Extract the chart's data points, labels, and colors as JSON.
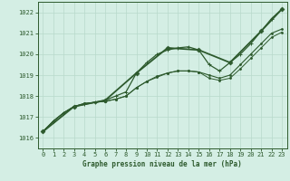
{
  "title": "Graphe pression niveau de la mer (hPa)",
  "bg_color": "#d4eee4",
  "grid_color": "#b8d9cb",
  "line_color": "#2d5a2d",
  "marker_color": "#2d5a2d",
  "xlim": [
    -0.5,
    23.5
  ],
  "ylim": [
    1015.5,
    1022.5
  ],
  "yticks": [
    1016,
    1017,
    1018,
    1019,
    1020,
    1021,
    1022
  ],
  "xticks": [
    0,
    1,
    2,
    3,
    4,
    5,
    6,
    7,
    8,
    9,
    10,
    11,
    12,
    13,
    14,
    15,
    16,
    17,
    18,
    19,
    20,
    21,
    22,
    23
  ],
  "series": [
    {
      "x": [
        0,
        1,
        2,
        3,
        4,
        5,
        6,
        7,
        8,
        9,
        10,
        11,
        12,
        13,
        14,
        15,
        16,
        17,
        18,
        19,
        20,
        21,
        22,
        23
      ],
      "y": [
        1016.3,
        1016.8,
        1017.2,
        1017.5,
        1017.6,
        1017.7,
        1017.8,
        1018.0,
        1018.2,
        1019.1,
        1019.6,
        1020.0,
        1020.2,
        1020.3,
        1020.35,
        1020.2,
        1019.5,
        1019.2,
        1019.6,
        1020.0,
        1020.5,
        1021.1,
        1021.7,
        1022.15
      ],
      "marker": "P",
      "markersize": 2.8,
      "linewidth": 0.9
    },
    {
      "x": [
        0,
        1,
        2,
        3,
        4,
        5,
        6,
        7,
        8,
        9,
        10,
        11,
        12,
        13,
        14,
        15,
        16,
        17,
        18,
        19,
        20,
        21,
        22,
        23
      ],
      "y": [
        1016.3,
        1016.8,
        1017.2,
        1017.5,
        1017.65,
        1017.7,
        1017.75,
        1017.85,
        1018.0,
        1018.4,
        1018.7,
        1018.95,
        1019.1,
        1019.2,
        1019.2,
        1019.15,
        1019.0,
        1018.85,
        1019.0,
        1019.5,
        1020.0,
        1020.5,
        1021.0,
        1021.2
      ],
      "marker": ".",
      "markersize": 2.0,
      "linewidth": 0.8
    },
    {
      "x": [
        0,
        1,
        2,
        3,
        4,
        5,
        6,
        7,
        8,
        9,
        10,
        11,
        12,
        13,
        14,
        15,
        16,
        17,
        18,
        19,
        20,
        21,
        22,
        23
      ],
      "y": [
        1016.3,
        1016.8,
        1017.2,
        1017.5,
        1017.65,
        1017.7,
        1017.75,
        1017.85,
        1018.0,
        1018.4,
        1018.7,
        1018.9,
        1019.1,
        1019.2,
        1019.2,
        1019.15,
        1018.85,
        1018.75,
        1018.85,
        1019.3,
        1019.8,
        1020.3,
        1020.8,
        1021.05
      ],
      "marker": ".",
      "markersize": 2.0,
      "linewidth": 0.7
    },
    {
      "x": [
        0,
        3,
        6,
        9,
        12,
        15,
        18,
        21,
        23
      ],
      "y": [
        1016.3,
        1017.5,
        1017.8,
        1019.1,
        1020.3,
        1020.2,
        1019.6,
        1021.1,
        1022.15
      ],
      "marker": "D",
      "markersize": 2.5,
      "linewidth": 1.3
    }
  ]
}
